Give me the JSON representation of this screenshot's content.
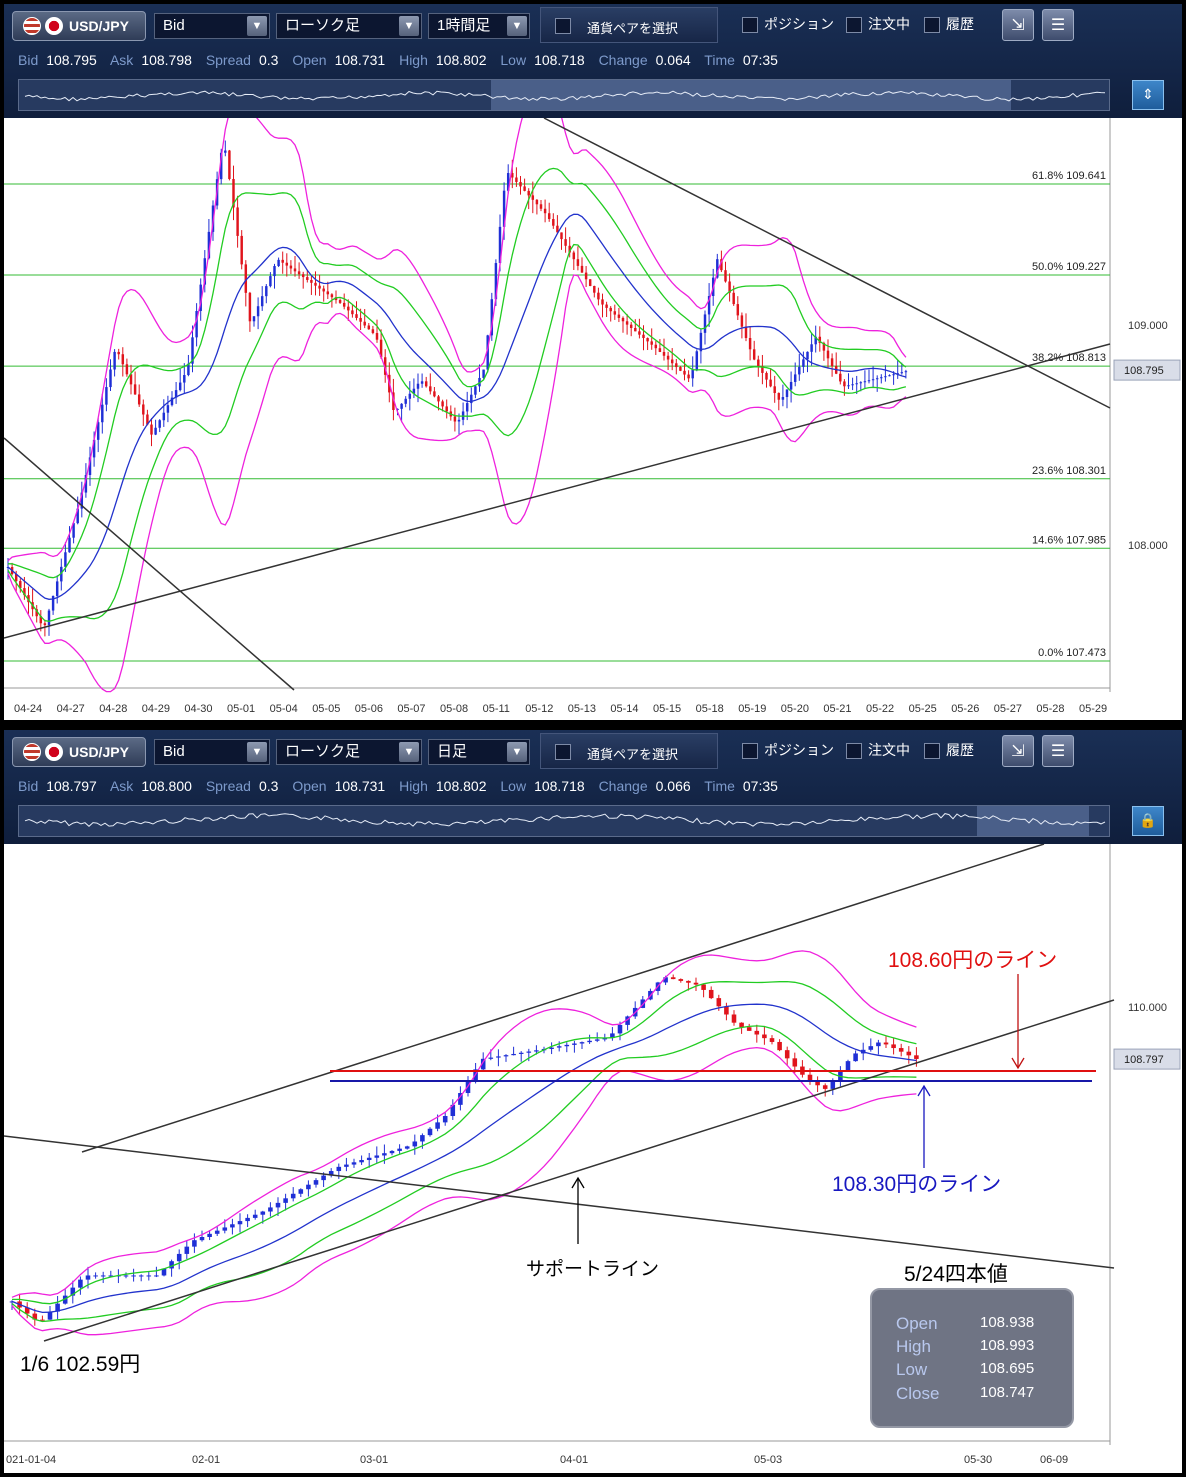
{
  "panels": [
    {
      "toolbar": {
        "symbol": "USD/JPY",
        "price_type": "Bid",
        "chart_type": "ローソク足",
        "timeframe": "1時間足",
        "pair_select": "通貨ペアを選択",
        "position": "ポジション",
        "orders": "注文中",
        "history": "履歴"
      },
      "info": {
        "bid_k": "Bid",
        "bid": "108.795",
        "ask_k": "Ask",
        "ask": "108.798",
        "spread_k": "Spread",
        "spread": "0.3",
        "open_k": "Open",
        "open": "108.731",
        "high_k": "High",
        "high": "108.802",
        "low_k": "Low",
        "low": "108.718",
        "change_k": "Change",
        "change": "0.064",
        "time_k": "Time",
        "time": "07:35"
      },
      "fib_labels": [
        "61.8%  109.641",
        "50.0%  109.227",
        "38.2%  108.813",
        "23.6%  108.301",
        "14.6%  107.985",
        "0.0%  107.473"
      ],
      "price_labels": [
        "109.000",
        "108.000"
      ],
      "current_price": "108.795",
      "x_ticks": [
        "04-24",
        "04-27",
        "04-28",
        "04-29",
        "04-30",
        "05-01",
        "05-04",
        "05-05",
        "05-06",
        "05-07",
        "05-08",
        "05-11",
        "05-12",
        "05-13",
        "05-14",
        "05-15",
        "05-18",
        "05-19",
        "05-20",
        "05-21",
        "05-22",
        "05-25",
        "05-26",
        "05-27",
        "05-28",
        "05-29"
      ]
    },
    {
      "toolbar": {
        "symbol": "USD/JPY",
        "price_type": "Bid",
        "chart_type": "ローソク足",
        "timeframe": "日足",
        "pair_select": "通貨ペアを選択",
        "position": "ポジション",
        "orders": "注文中",
        "history": "履歴"
      },
      "info": {
        "bid_k": "Bid",
        "bid": "108.797",
        "ask_k": "Ask",
        "ask": "108.800",
        "spread_k": "Spread",
        "spread": "0.3",
        "open_k": "Open",
        "open": "108.731",
        "high_k": "High",
        "high": "108.802",
        "low_k": "Low",
        "low": "108.718",
        "change_k": "Change",
        "change": "0.066",
        "time_k": "Time",
        "time": "07:35"
      },
      "price_labels": [
        "110.000"
      ],
      "current_price": "108.797",
      "x_ticks": [
        "021-01-04",
        "02-01",
        "03-01",
        "04-01",
        "05-03",
        "05-30",
        "06-09"
      ],
      "annotations": {
        "line_1060": "108.60円のライン",
        "line_1030": "108.30円のライン",
        "support": "サポートライン",
        "start": "1/6  102.59円",
        "ohlc_title": "5/24四本値"
      },
      "ohlc": {
        "open_k": "Open",
        "open": "108.938",
        "high_k": "High",
        "high": "108.993",
        "low_k": "Low",
        "low": "108.695",
        "close_k": "Close",
        "close": "108.747"
      }
    }
  ],
  "colors": {
    "bull": "#1f2fd6",
    "bear": "#e0141c",
    "bb_outer": "#ee22dd",
    "bb_inner": "#22cc22",
    "ma": "#2233cc",
    "fib": "#33bb33",
    "red_line": "#e01010",
    "blue_line": "#1818a8"
  }
}
